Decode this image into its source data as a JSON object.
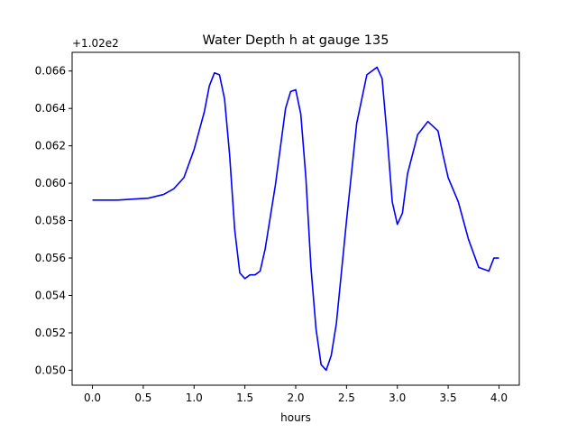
{
  "chart_data": {
    "type": "line",
    "title": "Water Depth h at gauge 135",
    "xlabel": "hours",
    "ylabel": "",
    "y_offset_text": "+1.02e2",
    "y_offset_value": 102,
    "xlim": [
      -0.2,
      4.2
    ],
    "ylim": [
      0.0492,
      0.067
    ],
    "x_ticks": [
      0.0,
      0.5,
      1.0,
      1.5,
      2.0,
      2.5,
      3.0,
      3.5,
      4.0
    ],
    "x_tick_labels": [
      "0.0",
      "0.5",
      "1.0",
      "1.5",
      "2.0",
      "2.5",
      "3.0",
      "3.5",
      "4.0"
    ],
    "y_ticks": [
      0.05,
      0.052,
      0.054,
      0.056,
      0.058,
      0.06,
      0.062,
      0.064,
      0.066
    ],
    "y_tick_labels": [
      "0.050",
      "0.052",
      "0.054",
      "0.056",
      "0.058",
      "0.060",
      "0.062",
      "0.064",
      "0.066"
    ],
    "grid": false,
    "line_color": "#0000ff",
    "series": [
      {
        "x": [
          0.0,
          0.1,
          0.25,
          0.4,
          0.55,
          0.7,
          0.8,
          0.9,
          1.0,
          1.1,
          1.15,
          1.2,
          1.25,
          1.3,
          1.35,
          1.4,
          1.45,
          1.5,
          1.55,
          1.6,
          1.65,
          1.7,
          1.8,
          1.9,
          1.95,
          2.0,
          2.05,
          2.1,
          2.15,
          2.2,
          2.25,
          2.3,
          2.35,
          2.4,
          2.5,
          2.6,
          2.7,
          2.8,
          2.85,
          2.9,
          2.95,
          3.0,
          3.05,
          3.1,
          3.2,
          3.3,
          3.4,
          3.45,
          3.5,
          3.6,
          3.7,
          3.8,
          3.9,
          3.95,
          4.0
        ],
        "values": [
          0.0591,
          0.0591,
          0.0591,
          0.05915,
          0.0592,
          0.0594,
          0.0597,
          0.0603,
          0.0618,
          0.0638,
          0.0652,
          0.0659,
          0.0658,
          0.0645,
          0.0615,
          0.0575,
          0.0552,
          0.0549,
          0.0551,
          0.0551,
          0.0553,
          0.0565,
          0.0599,
          0.064,
          0.0649,
          0.065,
          0.0637,
          0.0603,
          0.0555,
          0.0522,
          0.0503,
          0.05,
          0.0508,
          0.0525,
          0.058,
          0.0632,
          0.0658,
          0.0662,
          0.0656,
          0.0625,
          0.059,
          0.0578,
          0.0584,
          0.0605,
          0.0626,
          0.0633,
          0.0628,
          0.0615,
          0.0603,
          0.059,
          0.057,
          0.0555,
          0.0553,
          0.056,
          0.056
        ]
      }
    ]
  }
}
